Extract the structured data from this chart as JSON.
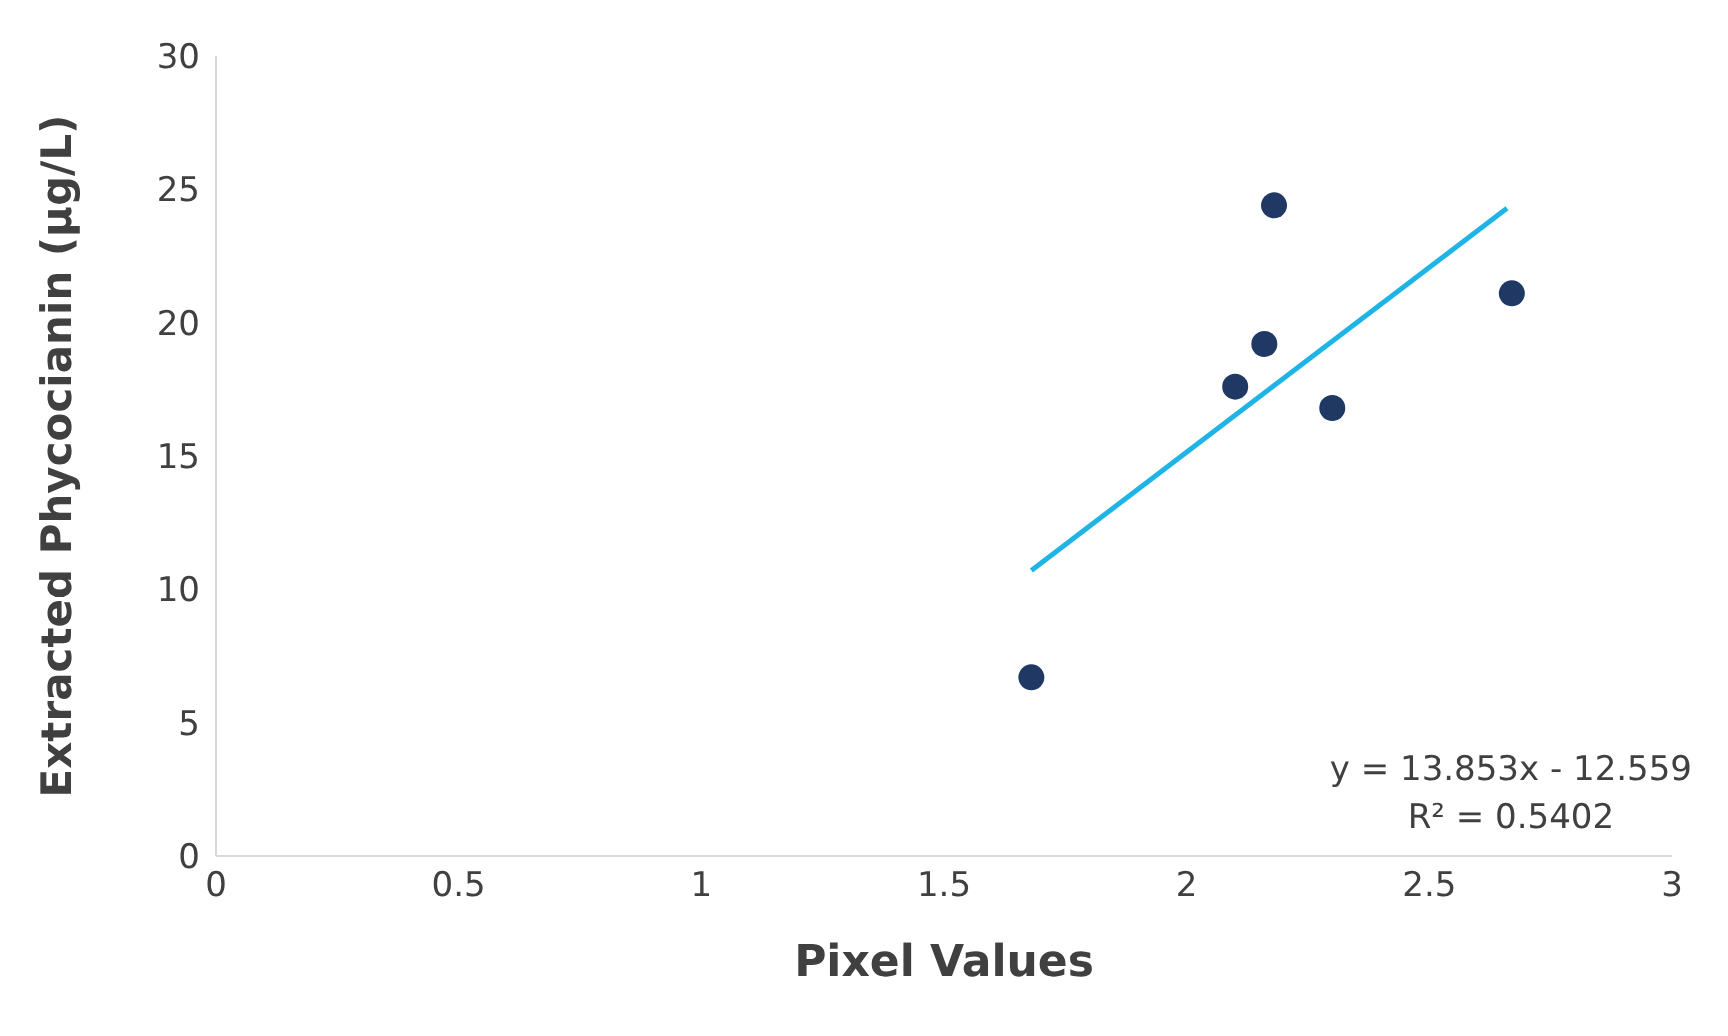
{
  "chart_data": {
    "type": "scatter",
    "xlabel": "Pixel Values",
    "ylabel": "Extracted Phycocianin (µg/L)",
    "xlim": [
      0,
      3
    ],
    "xticks": [
      0,
      0.5,
      1,
      1.5,
      2,
      2.5,
      3
    ],
    "ylim": [
      0,
      30
    ],
    "yticks": [
      0,
      5,
      10,
      15,
      20,
      25,
      30
    ],
    "series": [
      {
        "color": "#1f3864",
        "marker": "circle",
        "x": [
          1.68,
          2.1,
          2.16,
          2.18,
          2.3,
          2.67
        ],
        "values": [
          6.7,
          17.6,
          19.2,
          24.4,
          16.8,
          21.1
        ]
      },
      {
        "type": "line",
        "color": "#1fb4e6",
        "marker": "none",
        "x": [
          1.68,
          2.66
        ],
        "values": [
          10.71,
          24.29
        ]
      }
    ],
    "annotations": [
      "y = 13.853x - 12.559",
      "R² = 0.5402"
    ]
  }
}
